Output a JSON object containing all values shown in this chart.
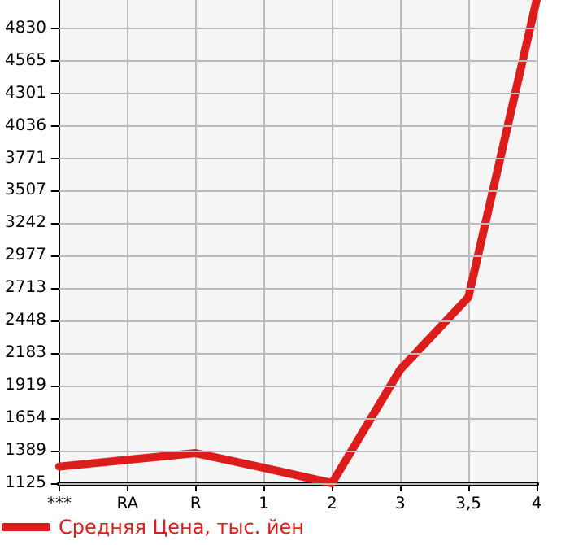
{
  "chart_data": {
    "type": "line",
    "categories": [
      "***",
      "RA",
      "R",
      "1",
      "2",
      "3",
      "3,5",
      "4"
    ],
    "series": [
      {
        "name": "Средняя Цена, тыс. йен",
        "color": "#dd1c1c",
        "values": [
          1260,
          1315,
          1370,
          1250,
          1125,
          2050,
          2640,
          5060
        ]
      }
    ],
    "ylim": [
      1125,
      5060
    ],
    "yticks": [
      1125,
      1389,
      1654,
      1919,
      2183,
      2448,
      2713,
      2977,
      3242,
      3507,
      3771,
      4036,
      4301,
      4565,
      4830
    ],
    "grid": true,
    "legend": "bottom left",
    "marker": "none",
    "line_style": "solid"
  }
}
